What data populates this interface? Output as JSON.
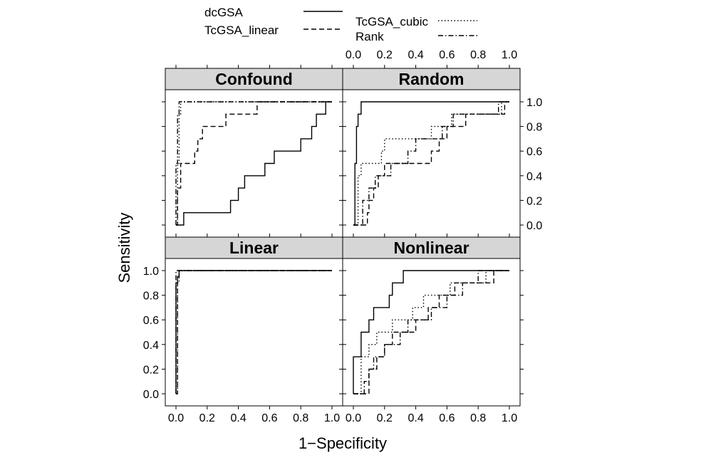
{
  "chart_data": {
    "type": "line",
    "xlabel": "1−Specificity",
    "ylabel": "Sensitivity",
    "xlim": [
      0,
      1
    ],
    "ylim": [
      0,
      1
    ],
    "ticks": [
      "0.0",
      "0.2",
      "0.4",
      "0.6",
      "0.8",
      "1.0"
    ],
    "grid": false,
    "legend_position": "top",
    "legend": [
      {
        "name": "dcGSA",
        "dash": "solid"
      },
      {
        "name": "TcGSA_linear",
        "dash": "dashed"
      },
      {
        "name": "TcGSA_cubic",
        "dash": "dotted"
      },
      {
        "name": "Rank",
        "dash": "dotdash"
      }
    ],
    "panels": [
      {
        "title": "Confound",
        "series": [
          {
            "name": "dcGSA",
            "points": [
              [
                0.0,
                0.0
              ],
              [
                0.05,
                0.0
              ],
              [
                0.05,
                0.1
              ],
              [
                0.35,
                0.1
              ],
              [
                0.35,
                0.2
              ],
              [
                0.4,
                0.2
              ],
              [
                0.4,
                0.3
              ],
              [
                0.44,
                0.3
              ],
              [
                0.44,
                0.4
              ],
              [
                0.57,
                0.4
              ],
              [
                0.57,
                0.5
              ],
              [
                0.63,
                0.5
              ],
              [
                0.63,
                0.6
              ],
              [
                0.8,
                0.6
              ],
              [
                0.8,
                0.7
              ],
              [
                0.87,
                0.7
              ],
              [
                0.87,
                0.8
              ],
              [
                0.9,
                0.8
              ],
              [
                0.9,
                0.9
              ],
              [
                0.96,
                0.9
              ],
              [
                0.96,
                1.0
              ],
              [
                1.0,
                1.0
              ]
            ]
          },
          {
            "name": "TcGSA_linear",
            "points": [
              [
                0.0,
                0.0
              ],
              [
                0.01,
                0.0
              ],
              [
                0.01,
                0.3
              ],
              [
                0.03,
                0.3
              ],
              [
                0.03,
                0.5
              ],
              [
                0.12,
                0.5
              ],
              [
                0.12,
                0.6
              ],
              [
                0.14,
                0.6
              ],
              [
                0.14,
                0.7
              ],
              [
                0.17,
                0.7
              ],
              [
                0.17,
                0.8
              ],
              [
                0.32,
                0.8
              ],
              [
                0.32,
                0.9
              ],
              [
                0.52,
                0.9
              ],
              [
                0.52,
                1.0
              ],
              [
                1.0,
                1.0
              ]
            ]
          },
          {
            "name": "TcGSA_cubic",
            "points": [
              [
                0.0,
                0.0
              ],
              [
                0.01,
                0.0
              ],
              [
                0.01,
                0.5
              ],
              [
                0.02,
                0.5
              ],
              [
                0.02,
                0.9
              ],
              [
                0.03,
                0.9
              ],
              [
                0.03,
                1.0
              ],
              [
                1.0,
                1.0
              ]
            ]
          },
          {
            "name": "Rank",
            "points": [
              [
                0.0,
                0.0
              ],
              [
                0.0,
                0.5
              ],
              [
                0.01,
                0.5
              ],
              [
                0.01,
                0.9
              ],
              [
                0.02,
                0.9
              ],
              [
                0.02,
                1.0
              ],
              [
                1.0,
                1.0
              ]
            ]
          }
        ]
      },
      {
        "title": "Random",
        "series": [
          {
            "name": "dcGSA",
            "points": [
              [
                0.0,
                0.0
              ],
              [
                0.01,
                0.0
              ],
              [
                0.01,
                0.2
              ],
              [
                0.01,
                0.5
              ],
              [
                0.02,
                0.5
              ],
              [
                0.02,
                0.8
              ],
              [
                0.03,
                0.8
              ],
              [
                0.03,
                0.9
              ],
              [
                0.05,
                0.9
              ],
              [
                0.05,
                1.0
              ],
              [
                1.0,
                1.0
              ]
            ]
          },
          {
            "name": "TcGSA_linear",
            "points": [
              [
                0.0,
                0.0
              ],
              [
                0.09,
                0.0
              ],
              [
                0.09,
                0.1
              ],
              [
                0.1,
                0.1
              ],
              [
                0.1,
                0.2
              ],
              [
                0.13,
                0.2
              ],
              [
                0.13,
                0.3
              ],
              [
                0.16,
                0.3
              ],
              [
                0.16,
                0.4
              ],
              [
                0.2,
                0.4
              ],
              [
                0.2,
                0.5
              ],
              [
                0.5,
                0.5
              ],
              [
                0.5,
                0.6
              ],
              [
                0.55,
                0.6
              ],
              [
                0.55,
                0.7
              ],
              [
                0.6,
                0.7
              ],
              [
                0.6,
                0.8
              ],
              [
                0.72,
                0.8
              ],
              [
                0.72,
                0.9
              ],
              [
                0.97,
                0.9
              ],
              [
                0.97,
                1.0
              ],
              [
                1.0,
                1.0
              ]
            ]
          },
          {
            "name": "TcGSA_cubic",
            "points": [
              [
                0.0,
                0.0
              ],
              [
                0.03,
                0.0
              ],
              [
                0.03,
                0.4
              ],
              [
                0.05,
                0.4
              ],
              [
                0.05,
                0.5
              ],
              [
                0.18,
                0.5
              ],
              [
                0.18,
                0.6
              ],
              [
                0.2,
                0.6
              ],
              [
                0.2,
                0.7
              ],
              [
                0.5,
                0.7
              ],
              [
                0.5,
                0.8
              ],
              [
                0.63,
                0.8
              ],
              [
                0.63,
                0.9
              ],
              [
                0.95,
                0.9
              ],
              [
                0.95,
                1.0
              ],
              [
                1.0,
                1.0
              ]
            ]
          },
          {
            "name": "Rank",
            "points": [
              [
                0.0,
                0.0
              ],
              [
                0.06,
                0.0
              ],
              [
                0.06,
                0.2
              ],
              [
                0.1,
                0.2
              ],
              [
                0.1,
                0.3
              ],
              [
                0.14,
                0.3
              ],
              [
                0.14,
                0.4
              ],
              [
                0.24,
                0.4
              ],
              [
                0.24,
                0.5
              ],
              [
                0.35,
                0.5
              ],
              [
                0.35,
                0.6
              ],
              [
                0.4,
                0.6
              ],
              [
                0.4,
                0.7
              ],
              [
                0.57,
                0.7
              ],
              [
                0.57,
                0.8
              ],
              [
                0.64,
                0.8
              ],
              [
                0.64,
                0.9
              ],
              [
                0.93,
                0.9
              ],
              [
                0.93,
                1.0
              ],
              [
                1.0,
                1.0
              ]
            ]
          }
        ]
      },
      {
        "title": "Linear",
        "series": [
          {
            "name": "dcGSA",
            "points": [
              [
                0.0,
                0.0
              ],
              [
                0.0,
                0.9
              ],
              [
                0.01,
                0.9
              ],
              [
                0.01,
                0.95
              ],
              [
                0.02,
                0.95
              ],
              [
                0.02,
                1.0
              ],
              [
                1.0,
                1.0
              ]
            ]
          },
          {
            "name": "TcGSA_linear",
            "points": [
              [
                0.0,
                0.0
              ],
              [
                0.01,
                0.0
              ],
              [
                0.01,
                0.95
              ],
              [
                0.02,
                0.95
              ],
              [
                0.02,
                1.0
              ],
              [
                1.0,
                1.0
              ]
            ]
          },
          {
            "name": "TcGSA_cubic",
            "points": [
              [
                0.0,
                0.0
              ],
              [
                0.01,
                0.0
              ],
              [
                0.01,
                0.9
              ],
              [
                0.02,
                0.9
              ],
              [
                0.02,
                1.0
              ],
              [
                1.0,
                1.0
              ]
            ]
          },
          {
            "name": "Rank",
            "points": [
              [
                0.0,
                0.0
              ],
              [
                0.0,
                1.0
              ],
              [
                1.0,
                1.0
              ]
            ]
          }
        ]
      },
      {
        "title": "Nonlinear",
        "series": [
          {
            "name": "dcGSA",
            "points": [
              [
                0.0,
                0.0
              ],
              [
                0.0,
                0.3
              ],
              [
                0.05,
                0.3
              ],
              [
                0.05,
                0.5
              ],
              [
                0.1,
                0.5
              ],
              [
                0.1,
                0.6
              ],
              [
                0.13,
                0.6
              ],
              [
                0.13,
                0.7
              ],
              [
                0.23,
                0.7
              ],
              [
                0.23,
                0.8
              ],
              [
                0.25,
                0.8
              ],
              [
                0.25,
                0.9
              ],
              [
                0.32,
                0.9
              ],
              [
                0.32,
                1.0
              ],
              [
                1.0,
                1.0
              ]
            ]
          },
          {
            "name": "TcGSA_linear",
            "points": [
              [
                0.0,
                0.0
              ],
              [
                0.1,
                0.0
              ],
              [
                0.1,
                0.2
              ],
              [
                0.15,
                0.2
              ],
              [
                0.15,
                0.3
              ],
              [
                0.2,
                0.3
              ],
              [
                0.2,
                0.4
              ],
              [
                0.25,
                0.4
              ],
              [
                0.25,
                0.5
              ],
              [
                0.4,
                0.5
              ],
              [
                0.4,
                0.6
              ],
              [
                0.48,
                0.6
              ],
              [
                0.48,
                0.7
              ],
              [
                0.55,
                0.7
              ],
              [
                0.55,
                0.8
              ],
              [
                0.65,
                0.8
              ],
              [
                0.65,
                0.9
              ],
              [
                0.9,
                0.9
              ],
              [
                0.9,
                1.0
              ],
              [
                1.0,
                1.0
              ]
            ]
          },
          {
            "name": "TcGSA_cubic",
            "points": [
              [
                0.0,
                0.0
              ],
              [
                0.05,
                0.0
              ],
              [
                0.05,
                0.3
              ],
              [
                0.1,
                0.3
              ],
              [
                0.1,
                0.4
              ],
              [
                0.15,
                0.4
              ],
              [
                0.15,
                0.5
              ],
              [
                0.25,
                0.5
              ],
              [
                0.25,
                0.6
              ],
              [
                0.38,
                0.6
              ],
              [
                0.38,
                0.7
              ],
              [
                0.45,
                0.7
              ],
              [
                0.45,
                0.8
              ],
              [
                0.62,
                0.8
              ],
              [
                0.62,
                0.9
              ],
              [
                0.85,
                0.9
              ],
              [
                0.85,
                1.0
              ],
              [
                1.0,
                1.0
              ]
            ]
          },
          {
            "name": "Rank",
            "points": [
              [
                0.0,
                0.0
              ],
              [
                0.07,
                0.0
              ],
              [
                0.07,
                0.1
              ],
              [
                0.1,
                0.1
              ],
              [
                0.1,
                0.2
              ],
              [
                0.13,
                0.2
              ],
              [
                0.13,
                0.3
              ],
              [
                0.2,
                0.3
              ],
              [
                0.2,
                0.4
              ],
              [
                0.3,
                0.4
              ],
              [
                0.3,
                0.5
              ],
              [
                0.35,
                0.5
              ],
              [
                0.35,
                0.6
              ],
              [
                0.5,
                0.6
              ],
              [
                0.5,
                0.7
              ],
              [
                0.6,
                0.7
              ],
              [
                0.6,
                0.8
              ],
              [
                0.7,
                0.8
              ],
              [
                0.7,
                0.9
              ],
              [
                0.8,
                0.9
              ],
              [
                0.8,
                1.0
              ],
              [
                1.0,
                1.0
              ]
            ]
          }
        ]
      }
    ]
  }
}
